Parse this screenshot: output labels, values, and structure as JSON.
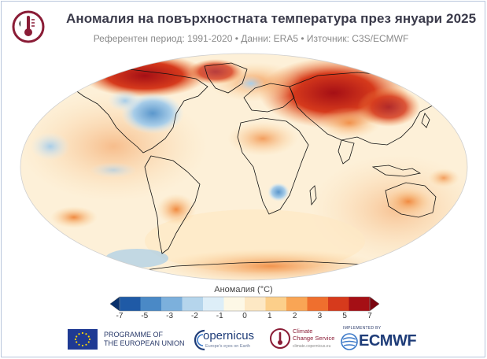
{
  "header": {
    "title": "Аномалия на повърхностната температура през януари 2025",
    "subtitle": "Референтен период: 1991-2020 • Данни: ERA5 • Източник: C3S/ECMWF"
  },
  "colorbar": {
    "title": "Аномалия (°C)",
    "tick_labels": [
      "-7",
      "-5",
      "-3",
      "-2",
      "-1",
      "0",
      "1",
      "2",
      "3",
      "5",
      "7"
    ],
    "colors": [
      "#08306b",
      "#1f5aa6",
      "#4a89c6",
      "#7cb0dc",
      "#b5d5ec",
      "#ddeef8",
      "#fdf8e6",
      "#fde8c4",
      "#fccf8a",
      "#f9a555",
      "#ef6f2e",
      "#d63a1c",
      "#a50f15",
      "#7a0510"
    ]
  },
  "map": {
    "colors": {
      "strong_warm": "#b21a1a",
      "warm": "#f08a40",
      "mild_warm": "#fbd39a",
      "neutral": "#fdf6e3",
      "cool": "#a8cde8",
      "strong_cool": "#5b97cc",
      "ocean_background": "#fdf0d8"
    }
  },
  "footer": {
    "eu_text_line1": "PROGRAMME OF",
    "eu_text_line2": "THE EUROPEAN UNION",
    "copernicus_name": "opernicus",
    "copernicus_tagline": "Europe's eyes on Earth",
    "c3s_line1": "Climate",
    "c3s_line2": "Change Service",
    "c3s_url": "climate.copernicus.eu",
    "ecmwf_small": "IMPLEMENTED BY",
    "ecmwf_name": "ECMWF"
  }
}
